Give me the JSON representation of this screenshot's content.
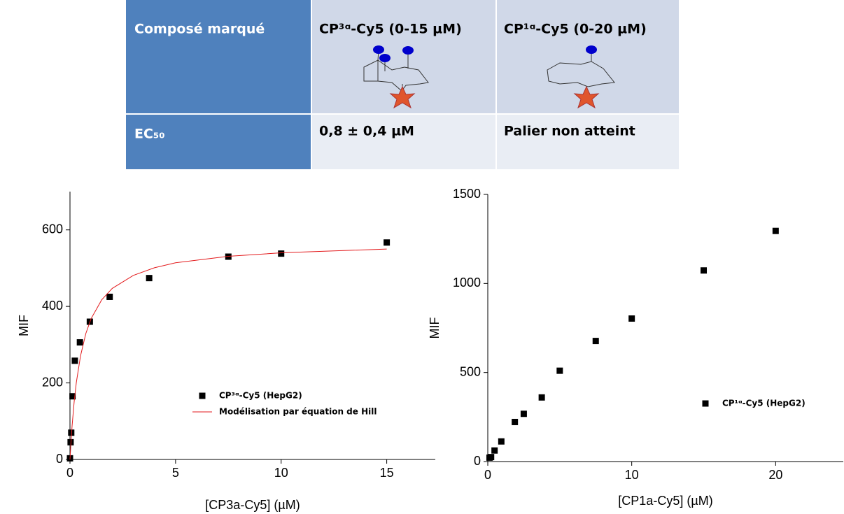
{
  "table": {
    "header": [
      "Composé marqué",
      "CP³ᵅ-Cy5 (0-15 µM)",
      "CP¹ᵅ-Cy5 (0-20 µM)"
    ],
    "rows": [
      [
        "EC₅₀",
        "0,8 ± 0,4 µM",
        "Palier non atteint"
      ]
    ]
  },
  "chart_data": [
    {
      "type": "scatter",
      "x_label": "[CP3a-Cy5] (µM)",
      "y_label": "MIF",
      "xlim": [
        0,
        17.3
      ],
      "ylim": [
        0,
        700
      ],
      "xticks": [
        0,
        5,
        10,
        15
      ],
      "yticks": [
        0,
        200,
        400,
        600
      ],
      "series": [
        {
          "name": "CP³ᵅ-Cy5 (HepG2)",
          "mode": "markers",
          "color": "#000000",
          "x": [
            0,
            0.03,
            0.06,
            0.12,
            0.23,
            0.47,
            0.94,
            1.88,
            3.75,
            7.5,
            10,
            15
          ],
          "values": [
            3,
            45,
            70,
            165,
            258,
            306,
            360,
            425,
            474,
            530,
            538,
            567
          ]
        },
        {
          "name": "Modélisation par équation de Hill",
          "mode": "lines",
          "color": "#e31a1c",
          "x": [
            0,
            0.05,
            0.1,
            0.2,
            0.3,
            0.5,
            0.75,
            1,
            1.5,
            2,
            3,
            4,
            5,
            7.5,
            10,
            12.5,
            15
          ],
          "values": [
            0,
            47,
            88,
            152,
            201,
            271,
            329,
            368,
            417,
            447,
            481,
            501,
            514,
            531,
            540,
            545,
            550
          ]
        }
      ]
    },
    {
      "type": "scatter",
      "x_label": "[CP1a-Cy5] (µM)",
      "y_label": "MIF",
      "xlim": [
        0,
        24.7
      ],
      "ylim": [
        0,
        1500
      ],
      "xticks": [
        0,
        10,
        20
      ],
      "yticks": [
        0,
        500,
        1000,
        1500
      ],
      "series": [
        {
          "name": "CP¹ᵅ-Cy5 (HepG2)",
          "mode": "markers",
          "color": "#000000",
          "x": [
            0.12,
            0.23,
            0.47,
            0.94,
            1.88,
            2.5,
            3.75,
            5,
            7.5,
            10,
            15,
            20
          ],
          "values": [
            22,
            25,
            62,
            113,
            222,
            268,
            360,
            510,
            677,
            803,
            1073,
            1295
          ]
        }
      ]
    }
  ]
}
